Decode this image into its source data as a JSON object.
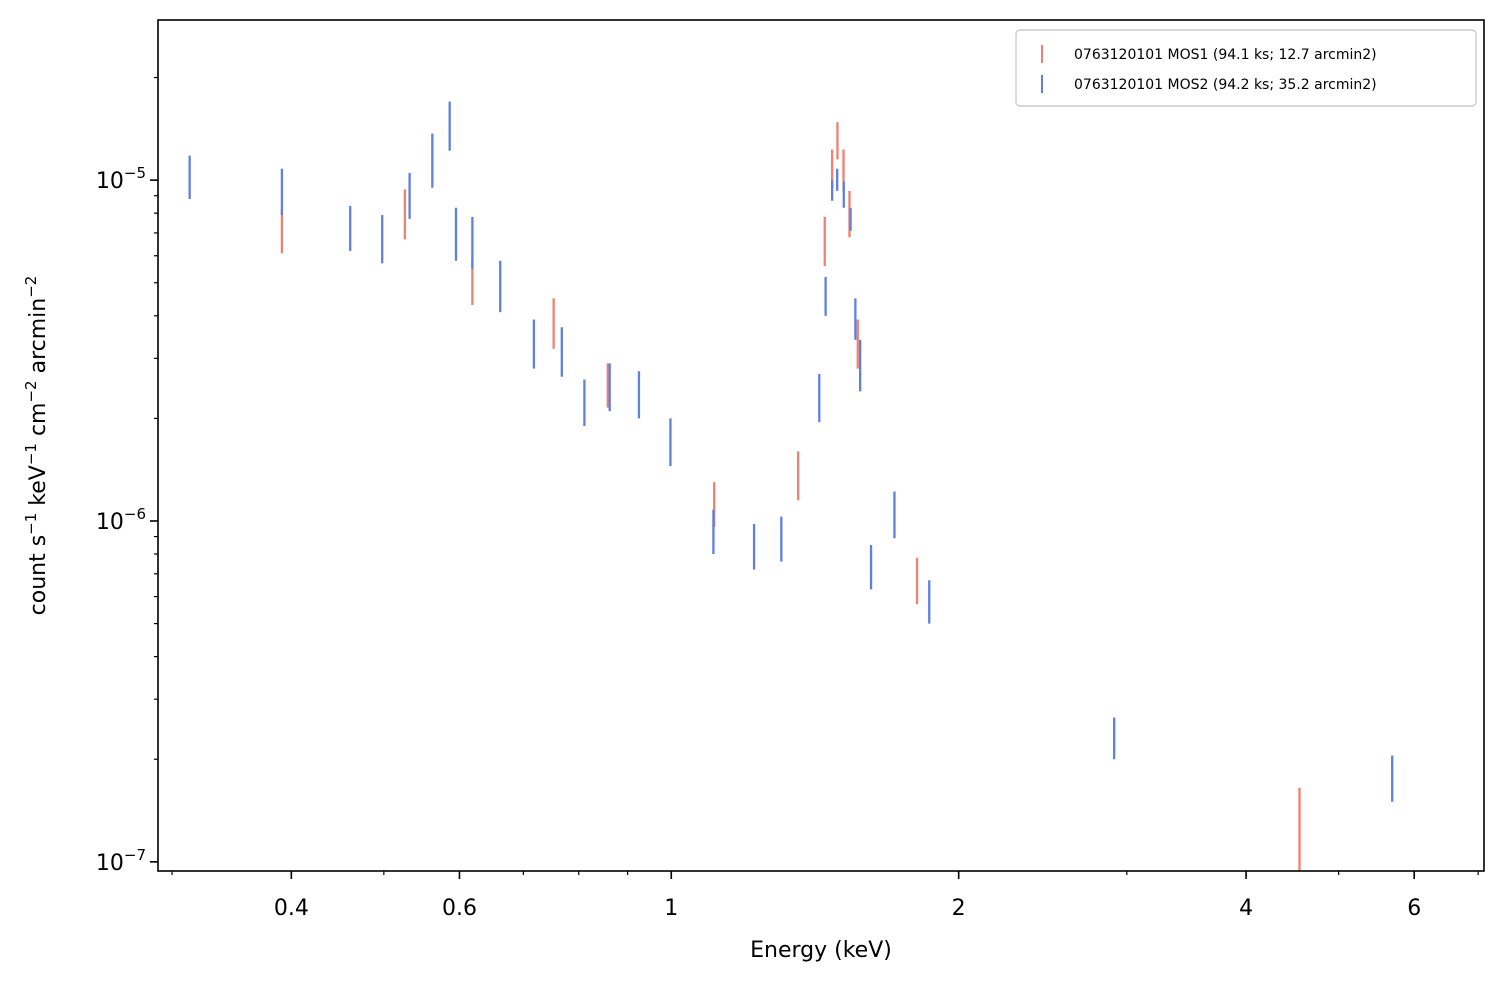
{
  "chart_data": {
    "type": "scatter",
    "title": "",
    "xlabel": "Energy (keV)",
    "ylabel_parts": [
      "count s",
      "−1",
      " keV",
      "−1",
      " cm",
      "−2",
      " arcmin",
      "−2"
    ],
    "x_scale": "log",
    "y_scale": "log",
    "xlim": [
      0.29,
      7.1
    ],
    "ylim": [
      9.4e-08,
      2.95e-05
    ],
    "x_ticks_major": [
      {
        "value": 0.4,
        "label": "0.4"
      },
      {
        "value": 0.6,
        "label": "0.6"
      },
      {
        "value": 1,
        "label": "1"
      },
      {
        "value": 2,
        "label": "2"
      },
      {
        "value": 4,
        "label": "4"
      },
      {
        "value": 6,
        "label": "6"
      }
    ],
    "x_ticks_minor": [
      0.3,
      0.5,
      0.7,
      0.8,
      0.9,
      3,
      5,
      7
    ],
    "y_ticks_major": [
      {
        "value": 1e-07,
        "base": "10",
        "exp": "−7"
      },
      {
        "value": 1e-06,
        "base": "10",
        "exp": "−6"
      },
      {
        "value": 1e-05,
        "base": "10",
        "exp": "−5"
      }
    ],
    "legend_placement": "top-right",
    "grid": false,
    "series": [
      {
        "name": "0763120101 MOS1 (94.1 ks; 12.7 arcmin2)",
        "color": "#f08070",
        "points": [
          {
            "x": 0.391,
            "ylo": 6.1e-06,
            "yhi": 8.2e-06
          },
          {
            "x": 0.526,
            "ylo": 6.7e-06,
            "yhi": 9.4e-06
          },
          {
            "x": 0.619,
            "ylo": 4.3e-06,
            "yhi": 5.9e-06
          },
          {
            "x": 0.753,
            "ylo": 3.2e-06,
            "yhi": 4.5e-06
          },
          {
            "x": 0.858,
            "ylo": 2.15e-06,
            "yhi": 2.9e-06
          },
          {
            "x": 1.109,
            "ylo": 9.6e-07,
            "yhi": 1.3e-06
          },
          {
            "x": 1.358,
            "ylo": 1.15e-06,
            "yhi": 1.6e-06
          },
          {
            "x": 1.448,
            "ylo": 5.6e-06,
            "yhi": 7.8e-06
          },
          {
            "x": 1.474,
            "ylo": 9.4e-06,
            "yhi": 1.23e-05
          },
          {
            "x": 1.493,
            "ylo": 1.15e-05,
            "yhi": 1.48e-05
          },
          {
            "x": 1.515,
            "ylo": 9.3e-06,
            "yhi": 1.23e-05
          },
          {
            "x": 1.537,
            "ylo": 6.8e-06,
            "yhi": 9.3e-06
          },
          {
            "x": 1.568,
            "ylo": 2.8e-06,
            "yhi": 3.9e-06
          },
          {
            "x": 1.809,
            "ylo": 5.7e-07,
            "yhi": 7.8e-07
          },
          {
            "x": 4.55,
            "ylo": 9.4e-08,
            "yhi": 1.65e-07
          }
        ]
      },
      {
        "name": "0763120101 MOS2 (94.2 ks; 35.2 arcmin2)",
        "color": "#6080e0",
        "points": [
          {
            "x": 0.313,
            "ylo": 8.8e-06,
            "yhi": 1.18e-05
          },
          {
            "x": 0.391,
            "ylo": 7.9e-06,
            "yhi": 1.08e-05
          },
          {
            "x": 0.461,
            "ylo": 6.2e-06,
            "yhi": 8.4e-06
          },
          {
            "x": 0.498,
            "ylo": 5.7e-06,
            "yhi": 7.9e-06
          },
          {
            "x": 0.532,
            "ylo": 7.7e-06,
            "yhi": 1.05e-05
          },
          {
            "x": 0.562,
            "ylo": 9.5e-06,
            "yhi": 1.37e-05
          },
          {
            "x": 0.586,
            "ylo": 1.22e-05,
            "yhi": 1.7e-05
          },
          {
            "x": 0.595,
            "ylo": 5.8e-06,
            "yhi": 8.3e-06
          },
          {
            "x": 0.619,
            "ylo": 5.5e-06,
            "yhi": 7.8e-06
          },
          {
            "x": 0.662,
            "ylo": 4.1e-06,
            "yhi": 5.8e-06
          },
          {
            "x": 0.718,
            "ylo": 2.8e-06,
            "yhi": 3.9e-06
          },
          {
            "x": 0.768,
            "ylo": 2.65e-06,
            "yhi": 3.7e-06
          },
          {
            "x": 0.811,
            "ylo": 1.9e-06,
            "yhi": 2.6e-06
          },
          {
            "x": 0.862,
            "ylo": 2.1e-06,
            "yhi": 2.9e-06
          },
          {
            "x": 0.925,
            "ylo": 2e-06,
            "yhi": 2.75e-06
          },
          {
            "x": 0.998,
            "ylo": 1.45e-06,
            "yhi": 2e-06
          },
          {
            "x": 1.107,
            "ylo": 8e-07,
            "yhi": 1.08e-06
          },
          {
            "x": 1.221,
            "ylo": 7.2e-07,
            "yhi": 9.8e-07
          },
          {
            "x": 1.304,
            "ylo": 7.6e-07,
            "yhi": 1.03e-06
          },
          {
            "x": 1.429,
            "ylo": 1.95e-06,
            "yhi": 2.7e-06
          },
          {
            "x": 1.451,
            "ylo": 4e-06,
            "yhi": 5.2e-06
          },
          {
            "x": 1.474,
            "ylo": 8.7e-06,
            "yhi": 1e-05
          },
          {
            "x": 1.492,
            "ylo": 9.3e-06,
            "yhi": 1.08e-05
          },
          {
            "x": 1.516,
            "ylo": 8.3e-06,
            "yhi": 9.9e-06
          },
          {
            "x": 1.541,
            "ylo": 7.1e-06,
            "yhi": 8.3e-06
          },
          {
            "x": 1.559,
            "ylo": 3.4e-06,
            "yhi": 4.5e-06
          },
          {
            "x": 1.577,
            "ylo": 2.4e-06,
            "yhi": 3.4e-06
          },
          {
            "x": 1.619,
            "ylo": 6.3e-07,
            "yhi": 8.5e-07
          },
          {
            "x": 1.713,
            "ylo": 8.9e-07,
            "yhi": 1.22e-06
          },
          {
            "x": 1.863,
            "ylo": 5e-07,
            "yhi": 6.7e-07
          },
          {
            "x": 2.91,
            "ylo": 2e-07,
            "yhi": 2.65e-07
          },
          {
            "x": 5.69,
            "ylo": 1.5e-07,
            "yhi": 2.05e-07
          }
        ]
      }
    ]
  }
}
